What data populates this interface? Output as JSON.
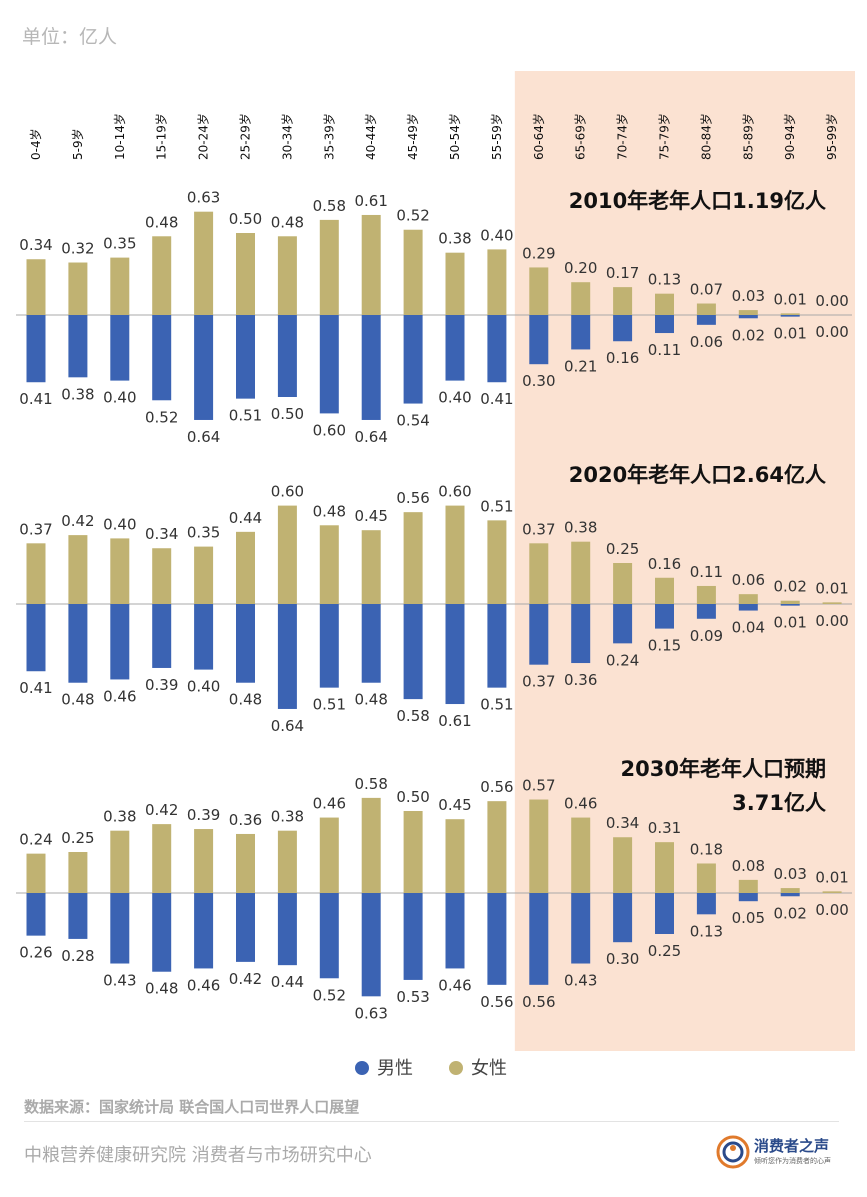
{
  "unit_label": "单位：亿人",
  "source": "数据来源：国家统计局 联合国人口司世界人口展望",
  "institute": "中粮营养健康研究院 消费者与市场研究中心",
  "logo": {
    "name": "消费者之声",
    "tagline": "倾听您作为消费者的心声"
  },
  "colors": {
    "male": "#3b63b3",
    "female": "#c0b272",
    "highlight": "#fbe2d2"
  },
  "chart_data": {
    "type": "bar",
    "orientation": "vertical-population-pyramid",
    "categories": [
      "0-4岁",
      "5-9岁",
      "10-14岁",
      "15-19岁",
      "20-24岁",
      "25-29岁",
      "30-34岁",
      "35-39岁",
      "40-44岁",
      "45-49岁",
      "50-54岁",
      "55-59岁",
      "60-64岁",
      "65-69岁",
      "70-74岁",
      "75-79岁",
      "80-84岁",
      "85-89岁",
      "90-94岁",
      "95-99岁"
    ],
    "highlight_categories": [
      "60-64岁",
      "65-69岁",
      "70-74岁",
      "75-79岁",
      "80-84岁",
      "85-89岁",
      "90-94岁",
      "95-99岁"
    ],
    "legend": {
      "items": [
        "男性",
        "女性"
      ],
      "position": "bottom"
    },
    "panels": [
      {
        "title_lines": [
          "2010年老年人口1.19亿人"
        ],
        "female": [
          0.34,
          0.32,
          0.35,
          0.48,
          0.63,
          0.5,
          0.48,
          0.58,
          0.61,
          0.52,
          0.38,
          0.4,
          0.29,
          0.2,
          0.17,
          0.13,
          0.07,
          0.03,
          0.01,
          0.0
        ],
        "male": [
          0.41,
          0.38,
          0.4,
          0.52,
          0.64,
          0.51,
          0.5,
          0.6,
          0.64,
          0.54,
          0.4,
          0.41,
          0.3,
          0.21,
          0.16,
          0.11,
          0.06,
          0.02,
          0.01,
          0.0
        ]
      },
      {
        "title_lines": [
          "2020年老年人口2.64亿人"
        ],
        "female": [
          0.37,
          0.42,
          0.4,
          0.34,
          0.35,
          0.44,
          0.6,
          0.48,
          0.45,
          0.56,
          0.6,
          0.51,
          0.37,
          0.38,
          0.25,
          0.16,
          0.11,
          0.06,
          0.02,
          0.01
        ],
        "male": [
          0.41,
          0.48,
          0.46,
          0.39,
          0.4,
          0.48,
          0.64,
          0.51,
          0.48,
          0.58,
          0.61,
          0.51,
          0.37,
          0.36,
          0.24,
          0.15,
          0.09,
          0.04,
          0.01,
          0.0
        ]
      },
      {
        "title_lines": [
          "2030年老年人口预期",
          "3.71亿人"
        ],
        "female": [
          0.24,
          0.25,
          0.38,
          0.42,
          0.39,
          0.36,
          0.38,
          0.46,
          0.58,
          0.5,
          0.45,
          0.56,
          0.57,
          0.46,
          0.34,
          0.31,
          0.18,
          0.08,
          0.03,
          0.01
        ],
        "male": [
          0.26,
          0.28,
          0.43,
          0.48,
          0.46,
          0.42,
          0.44,
          0.52,
          0.63,
          0.53,
          0.46,
          0.56,
          0.56,
          0.43,
          0.3,
          0.25,
          0.13,
          0.05,
          0.02,
          0.0
        ]
      }
    ]
  }
}
